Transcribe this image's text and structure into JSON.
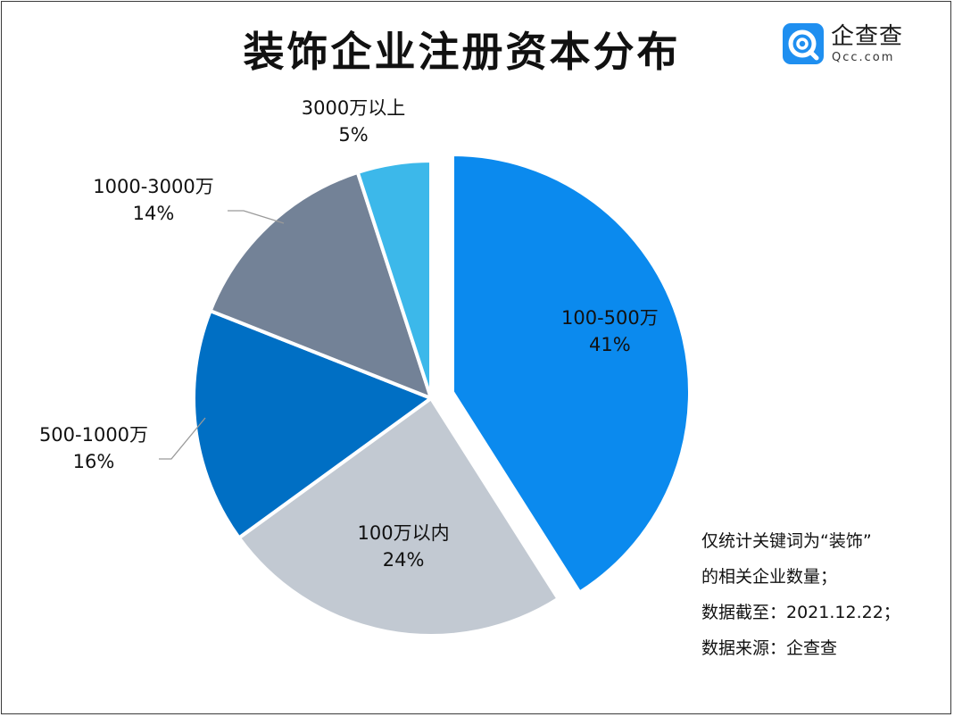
{
  "title": "装饰企业注册资本分布",
  "logo": {
    "name": "企查查",
    "domain": "Qcc.com"
  },
  "notes": [
    "仅统计关键词为“装饰”",
    "的相关企业数量；",
    "数据截至：2021.12.22；",
    "数据来源：企查查"
  ],
  "chart_data": {
    "type": "pie",
    "title": "装饰企业注册资本分布",
    "unit": "%",
    "slices": [
      {
        "label": "100-500万",
        "value": 41,
        "value_label": "41%",
        "color": "#0b8aee",
        "exploded": true
      },
      {
        "label": "100万以内",
        "value": 24,
        "value_label": "24%",
        "color": "#c2c9d2",
        "exploded": false
      },
      {
        "label": "500-1000万",
        "value": 16,
        "value_label": "16%",
        "color": "#006fc4",
        "exploded": false
      },
      {
        "label": "1000-3000万",
        "value": 14,
        "value_label": "14%",
        "color": "#738297",
        "exploded": false
      },
      {
        "label": "3000万以上",
        "value": 5,
        "value_label": "5%",
        "color": "#3cb8ea",
        "exploded": false
      }
    ]
  }
}
